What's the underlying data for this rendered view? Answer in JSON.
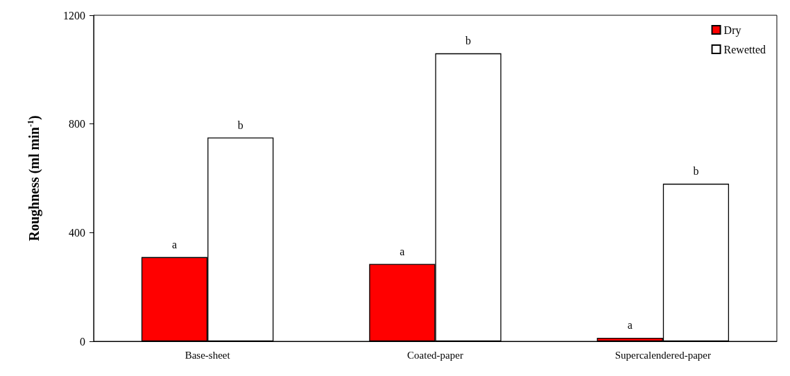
{
  "chart_data": {
    "type": "bar",
    "ylabel": "Roughness (ml min$^{-1}$)",
    "categories": [
      "Base-sheet",
      "Coated-paper",
      "Supercalendered-paper"
    ],
    "series": [
      {
        "name": "Dry",
        "color": "#ff0000",
        "values": [
          310,
          285,
          13
        ]
      },
      {
        "name": "Rewetted",
        "color": "#ffffff",
        "values": [
          750,
          1060,
          580
        ]
      }
    ],
    "ylim": [
      0,
      1200
    ],
    "yticks": [
      0,
      400,
      800,
      1200
    ],
    "grid": false,
    "legend": "top right",
    "annotations": [
      {
        "text": "a",
        "x": "Base-sheet",
        "y": 310
      },
      {
        "text": "b",
        "x": "Base-sheet",
        "y": 750
      },
      {
        "text": "a",
        "x": "Coated-paper",
        "y": 285
      },
      {
        "text": "b",
        "x": "Coated-paper",
        "y": 1060
      },
      {
        "text": "a",
        "x": "Supercalendered-paper",
        "y": 13
      },
      {
        "text": "b",
        "x": "Supercalendered-paper",
        "y": 580
      }
    ]
  }
}
